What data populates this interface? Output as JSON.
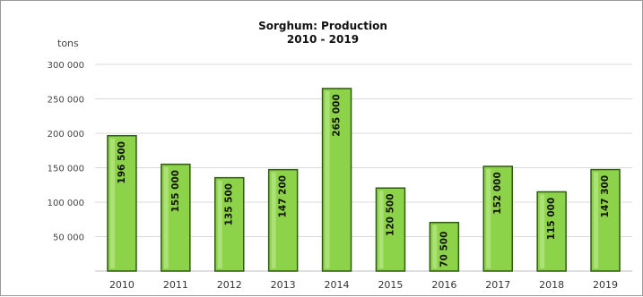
{
  "chart_data": {
    "type": "bar",
    "title": "Sorghum: Production",
    "subtitle": "2010 - 2019",
    "ylabel": "tons",
    "xlabel": "",
    "categories": [
      "2010",
      "2011",
      "2012",
      "2013",
      "2014",
      "2015",
      "2016",
      "2017",
      "2018",
      "2019"
    ],
    "values": [
      196500,
      155000,
      135500,
      147200,
      265000,
      120500,
      70500,
      152000,
      115000,
      147300
    ],
    "value_labels": [
      "196 500",
      "155 000",
      "135 500",
      "147 200",
      "265 000",
      "120 500",
      "70 500",
      "152 000",
      "115 000",
      "147 300"
    ],
    "yticks": [
      50000,
      100000,
      150000,
      200000,
      250000,
      300000
    ],
    "ytick_labels": [
      "50 000",
      "100 000",
      "150 000",
      "200 000",
      "250 000",
      "300 000"
    ],
    "ylim": [
      0,
      300000
    ],
    "grid": true,
    "legend": "none",
    "bar_color": "#8dd34a",
    "bar_edge_color": "#2f5a12",
    "grid_color": "#d9d9d9"
  }
}
